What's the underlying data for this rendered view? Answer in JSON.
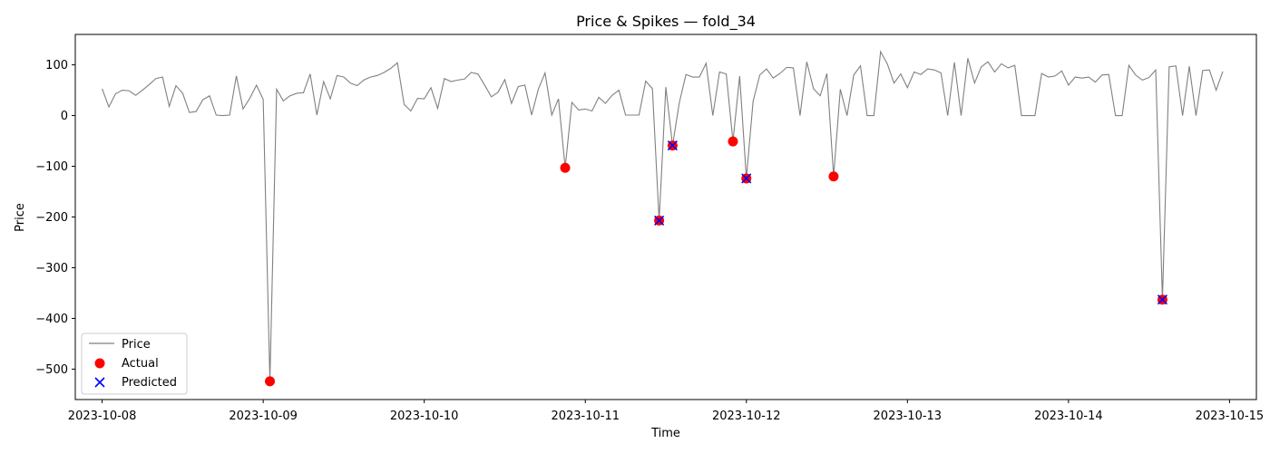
{
  "chart_data": {
    "type": "line",
    "title": "Price & Spikes — fold_34",
    "xlabel": "Time",
    "ylabel": "Price",
    "xlim": [
      "2023-10-07 20:00",
      "2023-10-15 04:00"
    ],
    "ylim": [
      -560,
      160
    ],
    "x_ticks": [
      "2023-10-08",
      "2023-10-09",
      "2023-10-10",
      "2023-10-11",
      "2023-10-12",
      "2023-10-13",
      "2023-10-14",
      "2023-10-15"
    ],
    "y_ticks": [
      100,
      0,
      -100,
      -200,
      -300,
      -400,
      -500
    ],
    "grid": false,
    "legend_position": "lower-left",
    "series": [
      {
        "name": "Price",
        "color": "#808080",
        "x_start": "2023-10-08 00:00",
        "interval": "1h",
        "values": [
          53,
          17,
          43,
          50,
          49,
          40,
          50,
          61,
          73,
          76,
          18,
          59,
          44,
          6,
          8,
          31,
          39,
          1,
          0,
          1,
          78,
          13,
          34,
          60,
          32,
          -524,
          52,
          29,
          39,
          44,
          45,
          82,
          1,
          67,
          33,
          79,
          76,
          64,
          59,
          70,
          76,
          79,
          85,
          93,
          104,
          22,
          9,
          34,
          33,
          55,
          14,
          73,
          67,
          70,
          72,
          85,
          82,
          60,
          37,
          46,
          71,
          24,
          57,
          60,
          1,
          52,
          84,
          1,
          33,
          -103,
          26,
          11,
          13,
          9,
          36,
          24,
          40,
          50,
          1,
          1,
          1,
          68,
          53,
          -207,
          56,
          -59,
          25,
          81,
          76,
          76,
          103,
          0,
          86,
          82,
          -51,
          78,
          -124,
          28,
          80,
          92,
          74,
          83,
          95,
          94,
          0,
          106,
          53,
          39,
          83,
          -120,
          52,
          0,
          80,
          98,
          0,
          0,
          126,
          102,
          64,
          82,
          55,
          86,
          81,
          92,
          90,
          84,
          0,
          105,
          0,
          113,
          64,
          96,
          106,
          86,
          102,
          94,
          99,
          0,
          0,
          0,
          83,
          76,
          78,
          88,
          60,
          76,
          74,
          76,
          66,
          80,
          81,
          0,
          0,
          99,
          80,
          70,
          75,
          90,
          -363,
          96,
          98,
          0,
          97,
          0,
          89,
          90,
          50,
          87
        ]
      },
      {
        "name": "Actual",
        "color": "#ff0000",
        "marker": "circle",
        "points": [
          {
            "x": "2023-10-09 01:00",
            "y": -524
          },
          {
            "x": "2023-10-10 21:00",
            "y": -103
          },
          {
            "x": "2023-10-11 11:00",
            "y": -207
          },
          {
            "x": "2023-10-11 13:00",
            "y": -59
          },
          {
            "x": "2023-10-11 22:00",
            "y": -51
          },
          {
            "x": "2023-10-12 00:00",
            "y": -124
          },
          {
            "x": "2023-10-12 13:00",
            "y": -120
          },
          {
            "x": "2023-10-14 14:00",
            "y": -363
          }
        ]
      },
      {
        "name": "Predicted",
        "color": "#0000ff",
        "marker": "x",
        "points": [
          {
            "x": "2023-10-11 11:00",
            "y": -207
          },
          {
            "x": "2023-10-11 13:00",
            "y": -59
          },
          {
            "x": "2023-10-12 00:00",
            "y": -124
          },
          {
            "x": "2023-10-14 14:00",
            "y": -363
          }
        ]
      }
    ]
  }
}
